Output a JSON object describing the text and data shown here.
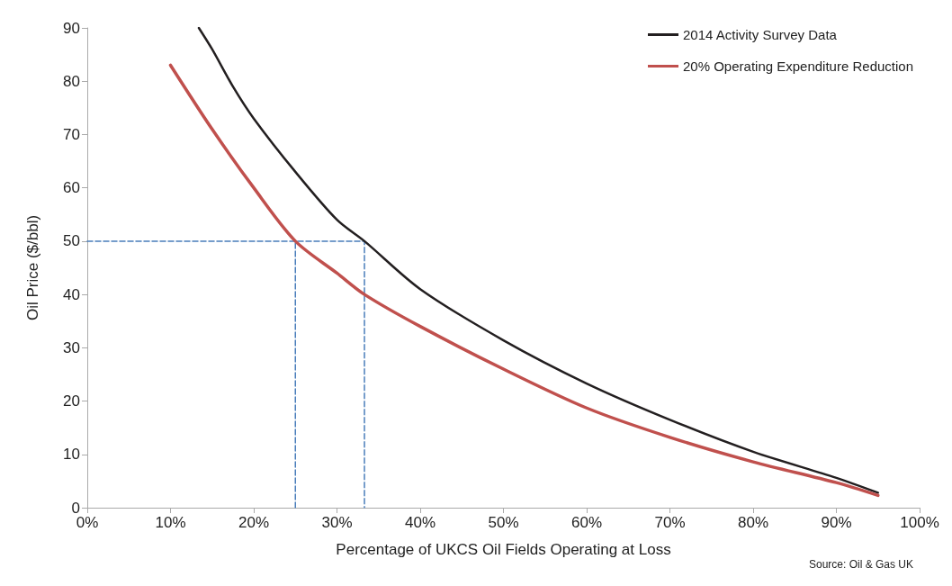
{
  "chart_data": {
    "type": "line",
    "xlabel": "Percentage of UKCS Oil Fields Operating at Loss",
    "ylabel": "Oil Price ($/bbl)",
    "xlim": [
      0,
      100
    ],
    "xticks": [
      {
        "value": 0,
        "label": "0%"
      },
      {
        "value": 10,
        "label": "10%"
      },
      {
        "value": 20,
        "label": "20%"
      },
      {
        "value": 30,
        "label": "30%"
      },
      {
        "value": 40,
        "label": "40%"
      },
      {
        "value": 50,
        "label": "50%"
      },
      {
        "value": 60,
        "label": "60%"
      },
      {
        "value": 70,
        "label": "70%"
      },
      {
        "value": 80,
        "label": "80%"
      },
      {
        "value": 90,
        "label": "90%"
      },
      {
        "value": 100,
        "label": "100%"
      }
    ],
    "ylim": [
      0,
      90
    ],
    "yticks": [
      0,
      10,
      20,
      30,
      40,
      50,
      60,
      70,
      80,
      90
    ],
    "grid": false,
    "legend": "top right",
    "marker": "none",
    "annotations": [
      "Source: Oil & Gas UK"
    ],
    "series": [
      {
        "name": "2014 Activity Survey Data",
        "color": "#231f20",
        "x": [
          13.4,
          15,
          17.5,
          20,
          25,
          30,
          33.3,
          40,
          50,
          60,
          70,
          80,
          90,
          95
        ],
        "values": [
          90,
          86,
          79,
          73,
          63,
          54,
          50,
          41,
          31.4,
          23.3,
          16.5,
          10.5,
          5.6,
          2.8
        ]
      },
      {
        "name": "20% Operating Expenditure Reduction",
        "color": "#c0504d",
        "x": [
          10,
          15,
          20,
          25,
          30,
          33.3,
          40,
          50,
          60,
          70,
          80,
          90,
          95
        ],
        "values": [
          83,
          71,
          60,
          50,
          44,
          40,
          34,
          26,
          18.7,
          13.2,
          8.6,
          4.7,
          2.3
        ]
      },
      {
        "color": "#4a7ebb",
        "line_style": "dashed",
        "x": [
          0,
          33.3,
          33.3
        ],
        "values": [
          50,
          50,
          0
        ]
      },
      {
        "color": "#4a7ebb",
        "line_style": "dashed",
        "x": [
          25,
          25
        ],
        "values": [
          0,
          50
        ]
      }
    ]
  }
}
